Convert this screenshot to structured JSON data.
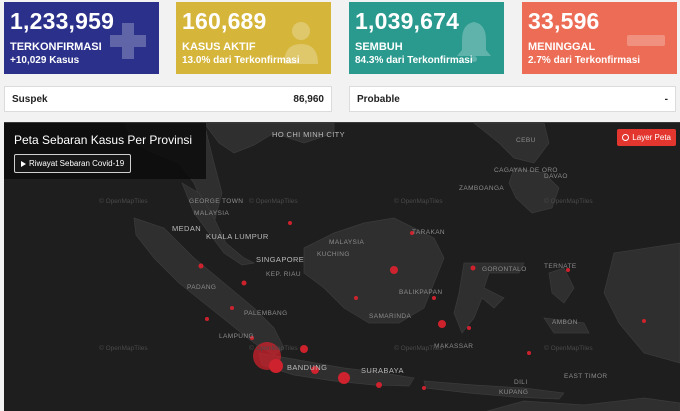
{
  "cards": [
    {
      "value": "1,233,959",
      "label": "TERKONFIRMASI",
      "sub": "+10,029 Kasus",
      "color": "#2b318a",
      "icon": "plus-icon"
    },
    {
      "value": "160,689",
      "label": "KASUS AKTIF",
      "sub": "13.0% dari Terkonfirmasi",
      "color": "#d5b53a",
      "icon": "doctor-icon"
    },
    {
      "value": "1,039,674",
      "label": "SEMBUH",
      "sub": "84.3% dari Terkonfirmasi",
      "color": "#2a9a8f",
      "icon": "bell-icon"
    },
    {
      "value": "33,596",
      "label": "MENINGGAL",
      "sub": "2.7% dari Terkonfirmasi",
      "color": "#ec6c55",
      "icon": "minus-icon"
    }
  ],
  "stats": {
    "suspek_label": "Suspek",
    "suspek_value": "86,960",
    "probable_label": "Probable",
    "probable_value": "-"
  },
  "map": {
    "title": "Peta Sebaran Kasus Per Provinsi",
    "history_button": "Riwayat Sebaran Covid-19",
    "layer_button": "Layer Peta",
    "attribution": "© OpenMapTiles",
    "cities": {
      "hcm": "HO CHI MINH CITY",
      "georgetown": "GEORGE TOWN",
      "malaysia": "MALAYSIA",
      "medan": "MEDAN",
      "kl": "KUALA LUMPUR",
      "singapore": "SINGAPORE",
      "padang": "PADANG",
      "palembang": "PALEMBANG",
      "bandung": "BANDUNG",
      "surabaya": "SURABAYA",
      "kuching": "KUCHING",
      "tarakan": "TARAKAN",
      "balikpapan": "BALIKPAPAN",
      "samarinda": "SAMARINDA",
      "gorontalo": "GORONTALO",
      "ternate": "TERNATE",
      "ambon": "AMBON",
      "kupang": "KUPANG",
      "cebu": "CEBU",
      "davao": "DAVAO",
      "cagayan": "CAGAYAN DE ORO",
      "zamboanga": "ZAMBOANGA",
      "makassar": "MAKASSAR",
      "dili": "DILI",
      "lampung": "LAMPUNG",
      "kep_riau": "KEP. RIAU",
      "east_timor": "EAST TIMOR"
    }
  },
  "colors": {
    "map_bg": "#1e1e1e",
    "land": "#2e2e2e",
    "bubble": "#e0222e",
    "layer_button": "#e2362e"
  }
}
